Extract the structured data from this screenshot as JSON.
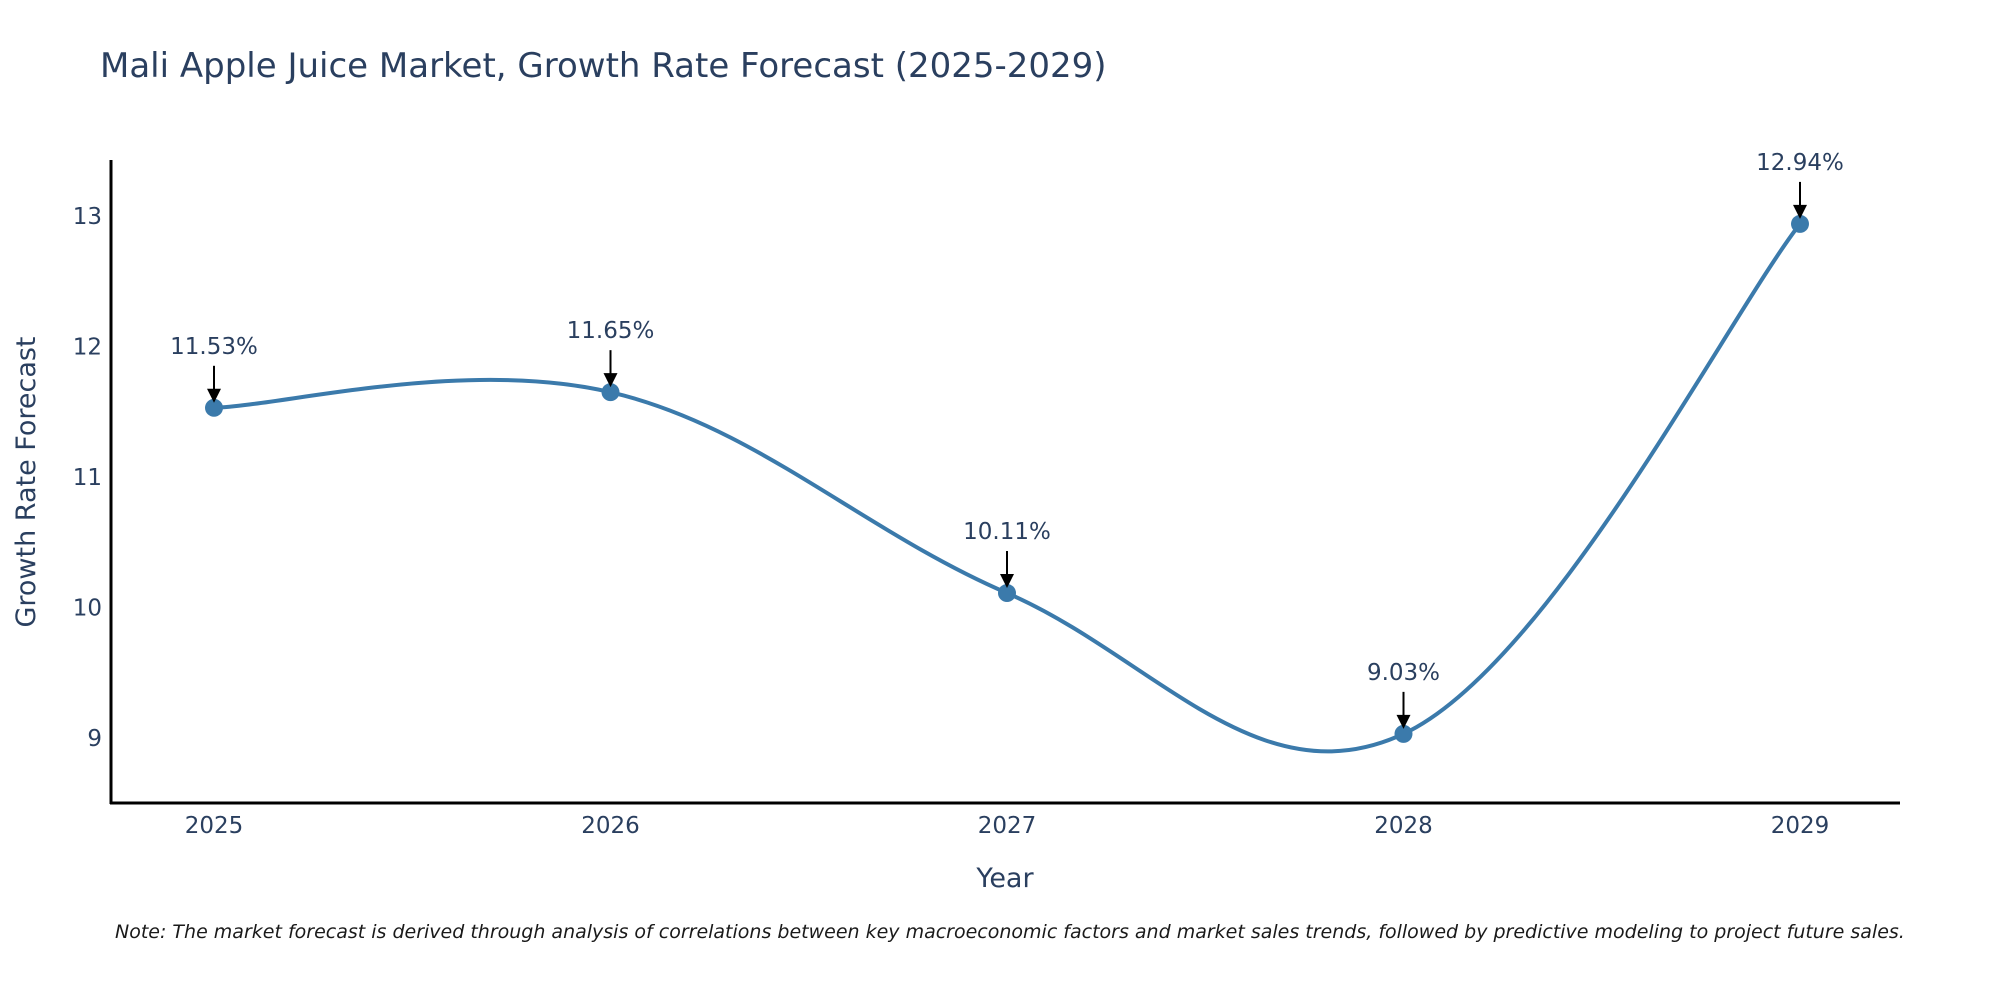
{
  "chart_data": {
    "type": "line",
    "title": "Mali Apple Juice Market, Growth Rate Forecast (2025-2029)",
    "xlabel": "Year",
    "ylabel": "Growth Rate Forecast",
    "categories": [
      "2025",
      "2026",
      "2027",
      "2028",
      "2029"
    ],
    "series": [
      {
        "name": "Growth Rate Forecast",
        "values": [
          11.53,
          11.65,
          10.11,
          9.03,
          12.94
        ]
      }
    ],
    "data_labels": [
      "11.53%",
      "11.65%",
      "10.11%",
      "9.03%",
      "12.94%"
    ],
    "yticks": [
      9,
      10,
      11,
      12,
      13
    ],
    "ylim": [
      8.5,
      13.43
    ],
    "grid": false,
    "line_color": "#3b7aab",
    "marker_color": "#3b7aab",
    "arrow_color": "#000000",
    "note": "Note: The market forecast is derived through analysis of correlations between key macroeconomic factors and market sales trends, followed by predictive modeling to project future sales."
  }
}
